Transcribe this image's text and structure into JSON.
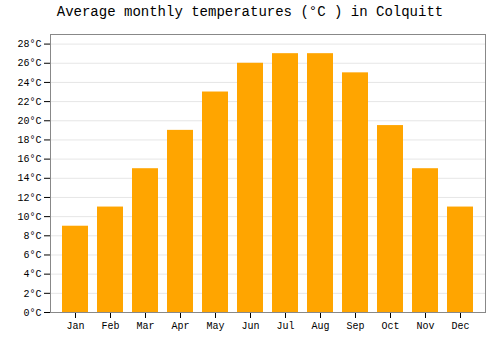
{
  "chart_data": {
    "type": "bar",
    "title": "Average monthly temperatures (°C ) in Colquitt",
    "categories": [
      "Jan",
      "Feb",
      "Mar",
      "Apr",
      "May",
      "Jun",
      "Jul",
      "Aug",
      "Sep",
      "Oct",
      "Nov",
      "Dec"
    ],
    "values": [
      9,
      11,
      15,
      19,
      23,
      26,
      27,
      27,
      25,
      19.5,
      15,
      11
    ],
    "color": "#FFA500",
    "ylim": [
      0,
      29
    ],
    "yticks": [
      {
        "value": 0,
        "label": "0°C"
      },
      {
        "value": 2,
        "label": "2°C"
      },
      {
        "value": 4,
        "label": "4°C"
      },
      {
        "value": 6,
        "label": "6°C"
      },
      {
        "value": 8,
        "label": "8°C"
      },
      {
        "value": 10,
        "label": "10°C"
      },
      {
        "value": 12,
        "label": "12°C"
      },
      {
        "value": 14,
        "label": "14°C"
      },
      {
        "value": 16,
        "label": "16°C"
      },
      {
        "value": 18,
        "label": "18°C"
      },
      {
        "value": 20,
        "label": "20°C"
      },
      {
        "value": 22,
        "label": "22°C"
      },
      {
        "value": 24,
        "label": "24°C"
      },
      {
        "value": 26,
        "label": "26°C"
      },
      {
        "value": 28,
        "label": "28°C"
      }
    ],
    "grid": true
  }
}
